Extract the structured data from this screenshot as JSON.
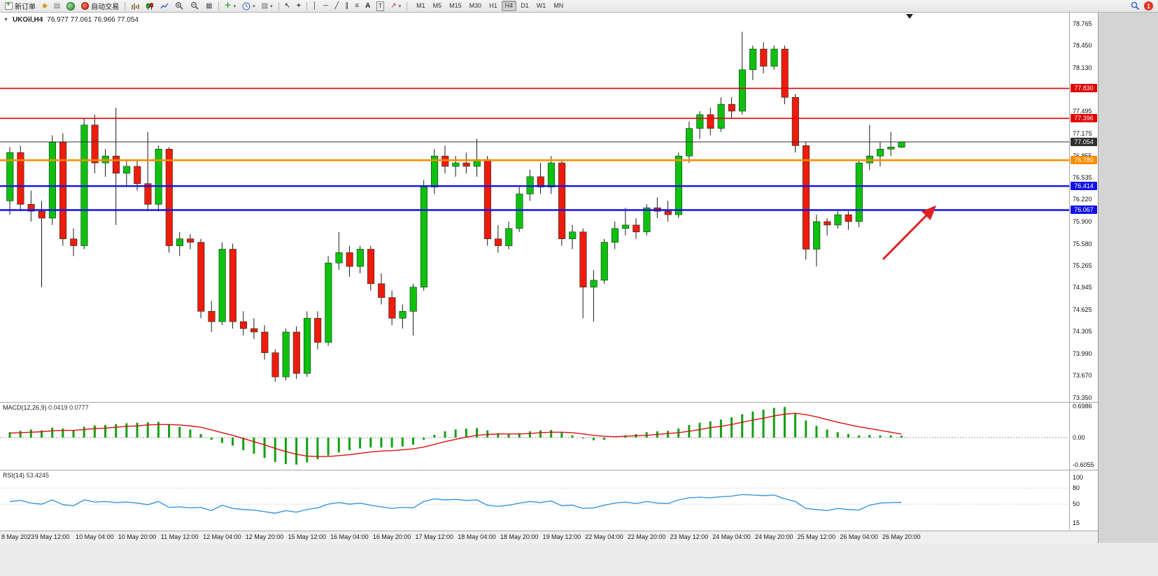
{
  "toolbar": {
    "new_order": "新订单",
    "auto_trading": "自动交易",
    "timeframes": [
      "M1",
      "M5",
      "M15",
      "M30",
      "H1",
      "H4",
      "D1",
      "W1",
      "MN"
    ],
    "active_timeframe": "H4",
    "notification_badge": "1"
  },
  "chart": {
    "symbol": "UKOil,H4",
    "ohlc": "76.977 77.061 76.966 77.054",
    "macd_label": "MACD(12,26,9)",
    "macd_values": "0.0419 0.0777",
    "rsi_label": "RSI(14)",
    "rsi_value": "53.4245"
  },
  "chart_data": {
    "type": "candlestick",
    "symbol": "UKOil",
    "timeframe": "H4",
    "title": "UKOil,H4 76.977 77.061 76.966 77.054",
    "price_range": [
      73.287,
      78.928
    ],
    "price_ticks": [
      "78.765",
      "78.450",
      "78.130",
      "77.495",
      "77.175",
      "76.855",
      "76.535",
      "76.220",
      "75.900",
      "75.580",
      "75.265",
      "74.945",
      "74.625",
      "74.305",
      "73.990",
      "73.670",
      "73.350"
    ],
    "colors": {
      "up": "#0ec10e",
      "down": "#ef1b0d",
      "red_line": "#e00000",
      "orange_line": "#ff8c00",
      "blue_line": "#1212e8",
      "current": "#303030"
    },
    "hlines": [
      {
        "price": 77.83,
        "color": "red",
        "label": "77.830"
      },
      {
        "price": 77.396,
        "color": "red",
        "label": "77.396"
      },
      {
        "price": 77.054,
        "color": "current",
        "label": "77.054"
      },
      {
        "price": 76.789,
        "color": "orange",
        "label": "76.789"
      },
      {
        "price": 76.414,
        "color": "blue",
        "label": "76.414"
      },
      {
        "price": 76.067,
        "color": "blue",
        "label": "76.067"
      }
    ],
    "time_labels": [
      {
        "bar": 0,
        "label": "8 May 2023"
      },
      {
        "bar": 4,
        "label": "9 May 12:00"
      },
      {
        "bar": 8,
        "label": "10 May 04:00"
      },
      {
        "bar": 12,
        "label": "10 May 20:00"
      },
      {
        "bar": 16,
        "label": "11 May 12:00"
      },
      {
        "bar": 20,
        "label": "12 May 04:00"
      },
      {
        "bar": 24,
        "label": "12 May 20:00"
      },
      {
        "bar": 28,
        "label": "15 May 12:00"
      },
      {
        "bar": 32,
        "label": "16 May 04:00"
      },
      {
        "bar": 36,
        "label": "16 May 20:00"
      },
      {
        "bar": 40,
        "label": "17 May 12:00"
      },
      {
        "bar": 44,
        "label": "18 May 04:00"
      },
      {
        "bar": 48,
        "label": "18 May 20:00"
      },
      {
        "bar": 52,
        "label": "19 May 12:00"
      },
      {
        "bar": 56,
        "label": "22 May 04:00"
      },
      {
        "bar": 60,
        "label": "22 May 20:00"
      },
      {
        "bar": 64,
        "label": "23 May 12:00"
      },
      {
        "bar": 68,
        "label": "24 May 04:00"
      },
      {
        "bar": 72,
        "label": "24 May 20:00"
      },
      {
        "bar": 76,
        "label": "25 May 12:00"
      },
      {
        "bar": 80,
        "label": "26 May 04:00"
      },
      {
        "bar": 84,
        "label": "26 May 20:00"
      }
    ],
    "candles": [
      [
        76.2,
        76.98,
        76.0,
        76.9
      ],
      [
        76.9,
        77.0,
        76.05,
        76.15
      ],
      [
        76.15,
        76.35,
        75.9,
        76.05
      ],
      [
        76.05,
        76.2,
        74.95,
        75.95
      ],
      [
        75.95,
        77.15,
        75.85,
        77.05
      ],
      [
        77.05,
        77.18,
        75.55,
        75.65
      ],
      [
        75.65,
        75.8,
        75.4,
        75.55
      ],
      [
        75.55,
        77.4,
        75.5,
        77.3
      ],
      [
        77.3,
        77.45,
        76.6,
        76.75
      ],
      [
        76.75,
        76.95,
        76.55,
        76.85
      ],
      [
        76.85,
        77.55,
        75.85,
        76.6
      ],
      [
        76.6,
        76.8,
        76.4,
        76.7
      ],
      [
        76.7,
        76.78,
        76.35,
        76.45
      ],
      [
        76.45,
        77.2,
        76.05,
        76.15
      ],
      [
        76.15,
        77.0,
        76.05,
        76.95
      ],
      [
        76.95,
        76.98,
        75.45,
        75.55
      ],
      [
        75.55,
        75.75,
        75.4,
        75.65
      ],
      [
        75.65,
        75.72,
        75.5,
        75.6
      ],
      [
        75.6,
        75.65,
        74.5,
        74.6
      ],
      [
        74.6,
        74.75,
        74.3,
        74.45
      ],
      [
        74.45,
        75.6,
        74.4,
        75.5
      ],
      [
        75.5,
        75.58,
        74.35,
        74.45
      ],
      [
        74.45,
        74.6,
        74.25,
        74.35
      ],
      [
        74.35,
        74.5,
        74.2,
        74.3
      ],
      [
        74.3,
        74.4,
        73.9,
        74.0
      ],
      [
        74.0,
        74.05,
        73.58,
        73.65
      ],
      [
        73.65,
        74.35,
        73.6,
        74.3
      ],
      [
        74.3,
        74.38,
        73.62,
        73.7
      ],
      [
        73.7,
        74.6,
        73.65,
        74.5
      ],
      [
        74.5,
        74.6,
        74.05,
        74.15
      ],
      [
        74.15,
        75.4,
        74.1,
        75.3
      ],
      [
        75.3,
        75.75,
        75.2,
        75.45
      ],
      [
        75.45,
        75.55,
        75.1,
        75.25
      ],
      [
        75.25,
        75.55,
        75.15,
        75.5
      ],
      [
        75.5,
        75.55,
        74.9,
        75.0
      ],
      [
        75.0,
        75.15,
        74.7,
        74.8
      ],
      [
        74.8,
        74.9,
        74.4,
        74.5
      ],
      [
        74.5,
        74.7,
        74.35,
        74.6
      ],
      [
        74.6,
        75.0,
        74.25,
        74.95
      ],
      [
        74.95,
        76.5,
        74.9,
        76.4
      ],
      [
        76.4,
        76.95,
        76.3,
        76.85
      ],
      [
        76.85,
        77.0,
        76.6,
        76.7
      ],
      [
        76.7,
        76.85,
        76.55,
        76.75
      ],
      [
        76.75,
        76.9,
        76.6,
        76.7
      ],
      [
        76.7,
        77.1,
        76.55,
        76.8
      ],
      [
        76.8,
        76.85,
        75.55,
        75.65
      ],
      [
        75.65,
        75.85,
        75.45,
        75.55
      ],
      [
        75.55,
        75.9,
        75.5,
        75.8
      ],
      [
        75.8,
        76.4,
        75.75,
        76.3
      ],
      [
        76.3,
        76.65,
        76.2,
        76.55
      ],
      [
        76.55,
        76.75,
        76.3,
        76.4
      ],
      [
        76.4,
        76.85,
        76.3,
        76.75
      ],
      [
        76.75,
        76.8,
        75.55,
        75.65
      ],
      [
        75.65,
        75.85,
        75.5,
        75.75
      ],
      [
        75.75,
        75.8,
        74.5,
        74.95
      ],
      [
        74.95,
        75.2,
        74.45,
        75.05
      ],
      [
        75.05,
        75.65,
        75.0,
        75.6
      ],
      [
        75.6,
        75.9,
        75.5,
        75.8
      ],
      [
        75.8,
        76.1,
        75.7,
        75.85
      ],
      [
        75.85,
        75.95,
        75.65,
        75.75
      ],
      [
        75.75,
        76.15,
        75.7,
        76.1
      ],
      [
        76.1,
        76.25,
        75.95,
        76.05
      ],
      [
        76.05,
        76.2,
        75.9,
        76.0
      ],
      [
        76.0,
        76.9,
        75.95,
        76.85
      ],
      [
        76.85,
        77.35,
        76.75,
        77.25
      ],
      [
        77.25,
        77.5,
        77.1,
        77.45
      ],
      [
        77.45,
        77.55,
        77.15,
        77.25
      ],
      [
        77.25,
        77.7,
        77.2,
        77.6
      ],
      [
        77.6,
        77.7,
        77.4,
        77.5
      ],
      [
        77.5,
        78.65,
        77.45,
        78.1
      ],
      [
        78.1,
        78.45,
        77.95,
        78.4
      ],
      [
        78.4,
        78.5,
        78.05,
        78.15
      ],
      [
        78.15,
        78.45,
        78.1,
        78.4
      ],
      [
        78.4,
        78.45,
        77.6,
        77.7
      ],
      [
        77.7,
        77.75,
        76.9,
        77.0
      ],
      [
        77.0,
        77.05,
        75.35,
        75.5
      ],
      [
        75.5,
        76.0,
        75.25,
        75.9
      ],
      [
        75.9,
        75.95,
        75.7,
        75.85
      ],
      [
        75.85,
        76.05,
        75.8,
        76.0
      ],
      [
        76.0,
        76.05,
        75.78,
        75.9
      ],
      [
        75.9,
        76.8,
        75.82,
        76.75
      ],
      [
        76.75,
        77.3,
        76.65,
        76.85
      ],
      [
        76.85,
        77.05,
        76.7,
        76.95
      ],
      [
        76.95,
        77.2,
        76.85,
        76.98
      ],
      [
        76.977,
        77.061,
        76.966,
        77.054
      ]
    ],
    "annotation_arrow": {
      "from": [
        1262,
        353
      ],
      "to": [
        1336,
        278
      ],
      "color": "#e02020"
    },
    "macd": {
      "range": [
        -0.6055,
        0.6986
      ],
      "ticks": [
        "0.6986",
        "0.00",
        "-0.6055"
      ],
      "histogram": [
        0.12,
        0.15,
        0.18,
        0.16,
        0.22,
        0.2,
        0.16,
        0.24,
        0.27,
        0.28,
        0.3,
        0.32,
        0.33,
        0.34,
        0.35,
        0.3,
        0.24,
        0.18,
        0.08,
        -0.05,
        -0.12,
        -0.18,
        -0.28,
        -0.36,
        -0.45,
        -0.54,
        -0.59,
        -0.6,
        -0.55,
        -0.48,
        -0.4,
        -0.33,
        -0.28,
        -0.24,
        -0.22,
        -0.22,
        -0.22,
        -0.2,
        -0.16,
        -0.05,
        0.06,
        0.14,
        0.18,
        0.2,
        0.21,
        0.16,
        0.1,
        0.07,
        0.1,
        0.14,
        0.16,
        0.17,
        0.12,
        0.05,
        -0.02,
        -0.06,
        -0.05,
        0.0,
        0.05,
        0.08,
        0.12,
        0.14,
        0.15,
        0.2,
        0.28,
        0.33,
        0.36,
        0.4,
        0.45,
        0.52,
        0.58,
        0.62,
        0.66,
        0.68,
        0.55,
        0.38,
        0.26,
        0.18,
        0.12,
        0.08,
        0.05,
        0.06,
        0.05,
        0.05,
        0.0419
      ],
      "signal": [
        0.1,
        0.11,
        0.12,
        0.13,
        0.15,
        0.16,
        0.16,
        0.18,
        0.2,
        0.21,
        0.23,
        0.25,
        0.26,
        0.28,
        0.29,
        0.29,
        0.28,
        0.26,
        0.23,
        0.17,
        0.11,
        0.05,
        -0.02,
        -0.09,
        -0.16,
        -0.24,
        -0.31,
        -0.37,
        -0.41,
        -0.42,
        -0.42,
        -0.4,
        -0.38,
        -0.35,
        -0.32,
        -0.3,
        -0.29,
        -0.27,
        -0.25,
        -0.21,
        -0.15,
        -0.09,
        -0.04,
        0.01,
        0.05,
        0.07,
        0.08,
        0.08,
        0.08,
        0.09,
        0.11,
        0.12,
        0.12,
        0.11,
        0.08,
        0.05,
        0.03,
        0.02,
        0.03,
        0.04,
        0.05,
        0.07,
        0.09,
        0.11,
        0.14,
        0.18,
        0.22,
        0.25,
        0.29,
        0.34,
        0.39,
        0.43,
        0.48,
        0.52,
        0.54,
        0.51,
        0.46,
        0.4,
        0.34,
        0.29,
        0.24,
        0.2,
        0.16,
        0.12,
        0.0777
      ]
    },
    "rsi": {
      "range": [
        15,
        100
      ],
      "levels": [
        80,
        50
      ],
      "ticks": [
        "100",
        "80",
        "50",
        "15"
      ],
      "values": [
        55,
        57,
        52,
        50,
        58,
        49,
        47,
        58,
        54,
        55,
        53,
        54,
        52,
        49,
        55,
        44,
        45,
        43,
        44,
        38,
        48,
        42,
        40,
        39,
        36,
        33,
        38,
        35,
        40,
        43,
        50,
        53,
        50,
        52,
        48,
        45,
        42,
        44,
        43,
        55,
        60,
        58,
        59,
        57,
        58,
        48,
        46,
        48,
        52,
        55,
        53,
        56,
        47,
        48,
        42,
        43,
        48,
        52,
        54,
        51,
        55,
        52,
        51,
        58,
        62,
        63,
        62,
        64,
        65,
        68,
        67,
        66,
        67,
        60,
        55,
        42,
        40,
        38,
        42,
        40,
        39,
        48,
        52,
        53,
        53.4245
      ]
    }
  }
}
